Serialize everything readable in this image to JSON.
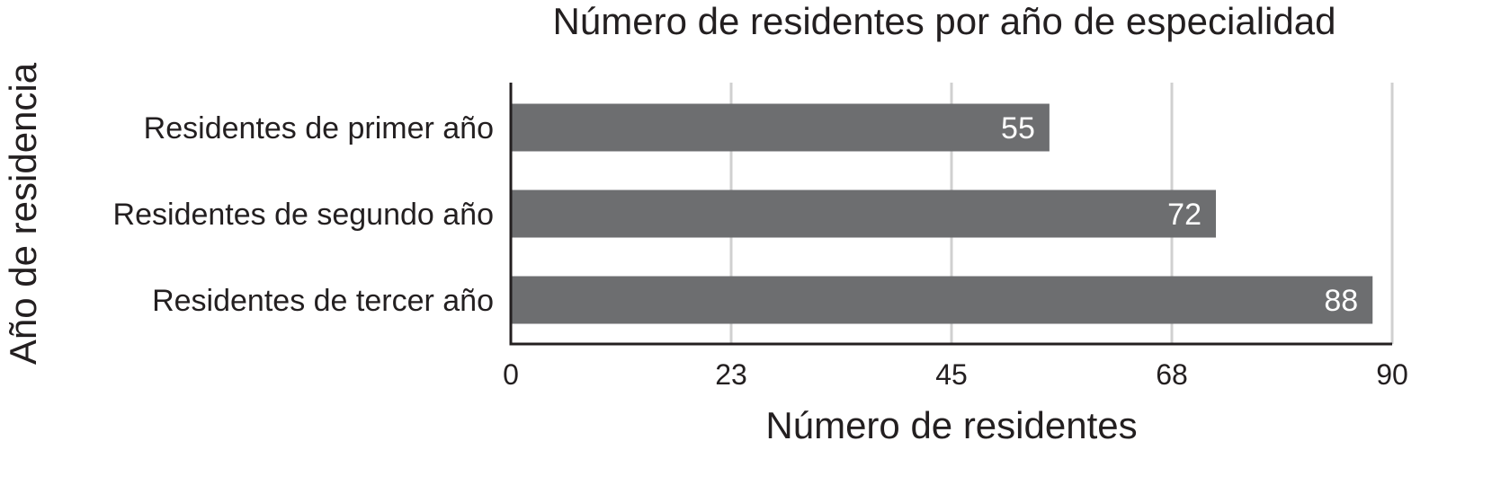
{
  "chart_data": {
    "type": "bar",
    "orientation": "horizontal",
    "title": "Número de residentes por año de especialidad",
    "xlabel": "Número de residentes",
    "ylabel": "Año de residencia",
    "categories": [
      "Residentes de primer año",
      "Residentes de segundo año",
      "Residentes de tercer año"
    ],
    "values": [
      55,
      72,
      88
    ],
    "data_labels": [
      "55",
      "72",
      "88"
    ],
    "xlim": [
      0,
      90
    ],
    "xticks": [
      0,
      22.5,
      45,
      67.5,
      90
    ],
    "xtick_labels": [
      "0",
      "23",
      "45",
      "68",
      "90"
    ],
    "grid": "vertical",
    "colors": {
      "bar": "#6d6e70",
      "grid": "#d0d0d0",
      "axis": "#231f20",
      "text": "#231f20",
      "data_label": "#ffffff"
    }
  }
}
